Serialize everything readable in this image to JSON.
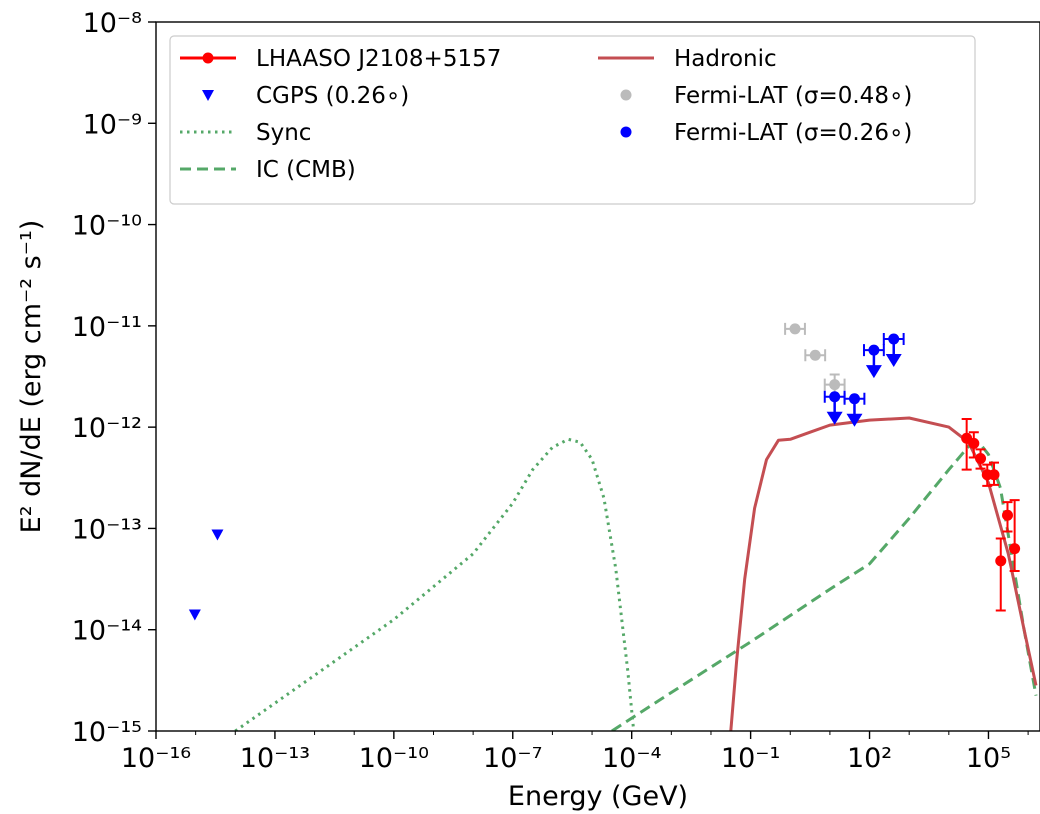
{
  "chart_data": {
    "type": "scatter",
    "xlabel": "Energy (GeV)",
    "ylabel": "E² dN/dE (erg cm⁻² s⁻¹)",
    "x_scale": "log",
    "y_scale": "log",
    "xlim_log10": [
      -16,
      6.3
    ],
    "ylim_log10": [
      -15,
      -8
    ],
    "x_ticks": [
      {
        "exp": -16,
        "label": "10⁻¹⁶"
      },
      {
        "exp": -13,
        "label": "10⁻¹³"
      },
      {
        "exp": -10,
        "label": "10⁻¹⁰"
      },
      {
        "exp": -7,
        "label": "10⁻⁷"
      },
      {
        "exp": -4,
        "label": "10⁻⁴"
      },
      {
        "exp": -1,
        "label": "10⁻¹"
      },
      {
        "exp": 2,
        "label": "10²"
      },
      {
        "exp": 5,
        "label": "10⁵"
      }
    ],
    "y_ticks": [
      {
        "exp": -8,
        "label": "10⁻⁸"
      },
      {
        "exp": -9,
        "label": "10⁻⁹"
      },
      {
        "exp": -10,
        "label": "10⁻¹⁰"
      },
      {
        "exp": -11,
        "label": "10⁻¹¹"
      },
      {
        "exp": -12,
        "label": "10⁻¹²"
      },
      {
        "exp": -13,
        "label": "10⁻¹³"
      },
      {
        "exp": -14,
        "label": "10⁻¹⁴"
      },
      {
        "exp": -15,
        "label": "10⁻¹⁵"
      }
    ],
    "grid": false,
    "legend_position": "top",
    "series": [
      {
        "name": "LHAASO J2108+5157",
        "kind": "points_with_errorbars",
        "color": "#ff0000",
        "points": [
          {
            "logx": 4.45,
            "logy": -12.11,
            "ylo": -12.42,
            "yhi": -11.92
          },
          {
            "logx": 4.63,
            "logy": -12.16,
            "ylo": -12.3,
            "yhi": -12.05
          },
          {
            "logx": 4.8,
            "logy": -12.31,
            "ylo": -12.41,
            "yhi": -12.22
          },
          {
            "logx": 4.97,
            "logy": -12.47,
            "ylo": -12.58,
            "yhi": -12.37
          },
          {
            "logx": 5.14,
            "logy": -12.47,
            "ylo": -12.57,
            "yhi": -12.35
          },
          {
            "logx": 5.31,
            "logy": -13.32,
            "ylo": -13.81,
            "yhi": -13.1
          },
          {
            "logx": 5.48,
            "logy": -12.87,
            "ylo": -13.03,
            "yhi": -12.74
          },
          {
            "logx": 5.66,
            "logy": -13.2,
            "ylo": -13.42,
            "yhi": -12.72
          }
        ]
      },
      {
        "name": "CGPS (0.26∘)",
        "kind": "triangle_markers",
        "color": "#0000ff",
        "points": [
          {
            "logx": -15.02,
            "logy": -13.85
          },
          {
            "logx": -14.45,
            "logy": -13.06
          }
        ]
      },
      {
        "name": "Sync",
        "kind": "dotted_line",
        "color": "#55a868",
        "points": [
          {
            "logx": -14.0,
            "logy": -15.0
          },
          {
            "logx": -12.0,
            "logy": -14.45
          },
          {
            "logx": -10.0,
            "logy": -13.9
          },
          {
            "logx": -8.0,
            "logy": -13.25
          },
          {
            "logx": -7.0,
            "logy": -12.75
          },
          {
            "logx": -6.5,
            "logy": -12.42
          },
          {
            "logx": -6.0,
            "logy": -12.2
          },
          {
            "logx": -5.6,
            "logy": -12.12
          },
          {
            "logx": -5.3,
            "logy": -12.15
          },
          {
            "logx": -5.0,
            "logy": -12.32
          },
          {
            "logx": -4.7,
            "logy": -12.7
          },
          {
            "logx": -4.4,
            "logy": -13.4
          },
          {
            "logx": -4.1,
            "logy": -14.4
          },
          {
            "logx": -3.95,
            "logy": -15.0
          }
        ]
      },
      {
        "name": "IC (CMB)",
        "kind": "dashed_line",
        "color": "#55a868",
        "points": [
          {
            "logx": -4.5,
            "logy": -15.0
          },
          {
            "logx": -3.0,
            "logy": -14.62
          },
          {
            "logx": -1.0,
            "logy": -14.12
          },
          {
            "logx": 1.0,
            "logy": -13.6
          },
          {
            "logx": 2.0,
            "logy": -13.35
          },
          {
            "logx": 3.0,
            "logy": -12.9
          },
          {
            "logx": 4.0,
            "logy": -12.42
          },
          {
            "logx": 4.5,
            "logy": -12.19
          },
          {
            "logx": 4.8,
            "logy": -12.17
          },
          {
            "logx": 5.0,
            "logy": -12.27
          },
          {
            "logx": 5.3,
            "logy": -12.6
          },
          {
            "logx": 5.6,
            "logy": -13.3
          },
          {
            "logx": 5.9,
            "logy": -14.0
          },
          {
            "logx": 6.2,
            "logy": -14.65
          }
        ]
      },
      {
        "name": "Hadronic",
        "kind": "solid_line",
        "color": "#c44e52",
        "points": [
          {
            "logx": -1.5,
            "logy": -15.0
          },
          {
            "logx": -1.35,
            "logy": -14.3
          },
          {
            "logx": -1.15,
            "logy": -13.5
          },
          {
            "logx": -0.9,
            "logy": -12.8
          },
          {
            "logx": -0.6,
            "logy": -12.32
          },
          {
            "logx": -0.3,
            "logy": -12.13
          },
          {
            "logx": 0.0,
            "logy": -12.12
          },
          {
            "logx": 0.5,
            "logy": -12.05
          },
          {
            "logx": 1.0,
            "logy": -11.98
          },
          {
            "logx": 2.0,
            "logy": -11.93
          },
          {
            "logx": 3.0,
            "logy": -11.91
          },
          {
            "logx": 4.0,
            "logy": -12.0
          },
          {
            "logx": 4.5,
            "logy": -12.15
          },
          {
            "logx": 5.0,
            "logy": -12.55
          },
          {
            "logx": 5.5,
            "logy": -13.25
          },
          {
            "logx": 5.9,
            "logy": -14.0
          },
          {
            "logx": 6.2,
            "logy": -14.55
          }
        ]
      },
      {
        "name": "Fermi-LAT (σ=0.48∘)",
        "kind": "points_with_errorbars",
        "color": "#bbbbbb",
        "points": [
          {
            "logx": 0.12,
            "logy": -11.03,
            "xlo": -0.13,
            "xhi": 0.37
          },
          {
            "logx": 0.63,
            "logy": -11.29,
            "xlo": 0.38,
            "xhi": 0.88
          },
          {
            "logx": 1.12,
            "logy": -11.58,
            "xlo": 0.87,
            "xhi": 1.37,
            "ylo": -11.71,
            "yhi": -11.48
          }
        ]
      },
      {
        "name": "Fermi-LAT (σ=0.26∘)",
        "kind": "upper_limits",
        "color": "#0000ff",
        "points": [
          {
            "logx": 1.12,
            "logy": -11.7,
            "xlo": 0.87,
            "xhi": 1.37
          },
          {
            "logx": 1.62,
            "logy": -11.72,
            "xlo": 1.37,
            "xhi": 1.87
          },
          {
            "logx": 2.11,
            "logy": -11.24,
            "xlo": 1.86,
            "xhi": 2.36
          },
          {
            "logx": 2.61,
            "logy": -11.13,
            "xlo": 2.36,
            "xhi": 2.86
          }
        ]
      }
    ]
  }
}
